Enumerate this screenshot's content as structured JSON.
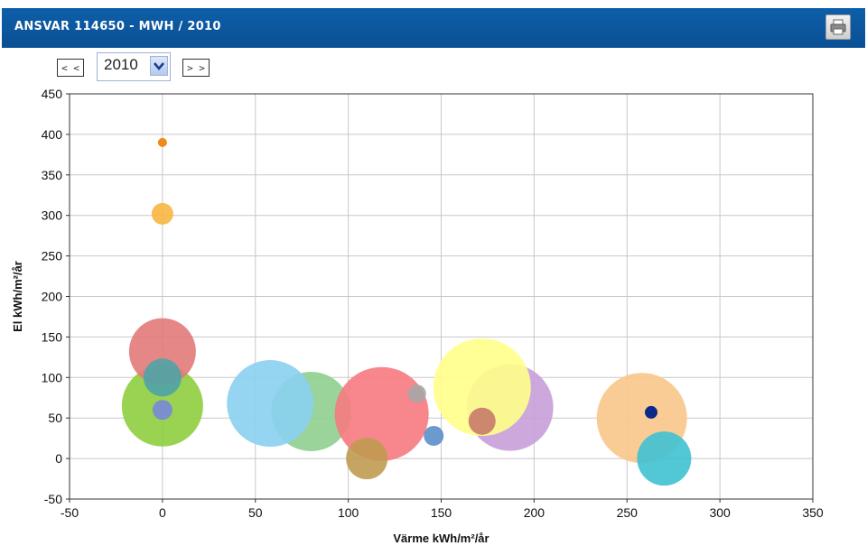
{
  "header": {
    "title": "ANSVAR 114650 - MWH / 2010"
  },
  "controls": {
    "prev_label": "< <",
    "next_label": "> >",
    "year_selected": "2010"
  },
  "chart_data": {
    "type": "scatter",
    "variant": "bubble",
    "title": "",
    "xlabel": "Värme kWh/m²/år",
    "ylabel": "El kWh/m²/år",
    "xlim": [
      -50,
      350
    ],
    "ylim": [
      -50,
      450
    ],
    "xticks": [
      "-50",
      "0",
      "50",
      "100",
      "150",
      "200",
      "250",
      "300",
      "350"
    ],
    "yticks": [
      "-50",
      "0",
      "50",
      "100",
      "150",
      "200",
      "250",
      "300",
      "350",
      "400",
      "450"
    ],
    "grid": true,
    "legend": "none",
    "points": [
      {
        "x": 0,
        "y": 65,
        "size": 45,
        "color": "#8fce3e"
      },
      {
        "x": 187,
        "y": 63,
        "size": 48,
        "color": "#c79fd9"
      },
      {
        "x": 80,
        "y": 58,
        "size": 44,
        "color": "#8fcf8f"
      },
      {
        "x": 58,
        "y": 68,
        "size": 48,
        "color": "#8ad0ef"
      },
      {
        "x": 118,
        "y": 55,
        "size": 52,
        "color": "#f67a80"
      },
      {
        "x": 172,
        "y": 88,
        "size": 54,
        "color": "#ffff8a"
      },
      {
        "x": 258,
        "y": 50,
        "size": 50,
        "color": "#f9c68a"
      },
      {
        "x": 270,
        "y": 0,
        "size": 30,
        "color": "#3fc1d2"
      },
      {
        "x": 0,
        "y": 132,
        "size": 37,
        "color": "#e27a7a"
      },
      {
        "x": 0,
        "y": 100,
        "size": 21,
        "color": "#4fa3a6"
      },
      {
        "x": 110,
        "y": 0,
        "size": 23,
        "color": "#c09a50"
      },
      {
        "x": 172,
        "y": 46,
        "size": 15,
        "color": "#c87a6a"
      },
      {
        "x": 137,
        "y": 80,
        "size": 10,
        "color": "#a6a6a6"
      },
      {
        "x": 146,
        "y": 28,
        "size": 11,
        "color": "#5b8fc9"
      },
      {
        "x": 0,
        "y": 60,
        "size": 11,
        "color": "#7a86d9"
      },
      {
        "x": 0,
        "y": 302,
        "size": 12,
        "color": "#f7b640"
      },
      {
        "x": 0,
        "y": 390,
        "size": 5,
        "color": "#f08a1a"
      },
      {
        "x": 263,
        "y": 57,
        "size": 7,
        "color": "#0a2a8a"
      }
    ]
  }
}
